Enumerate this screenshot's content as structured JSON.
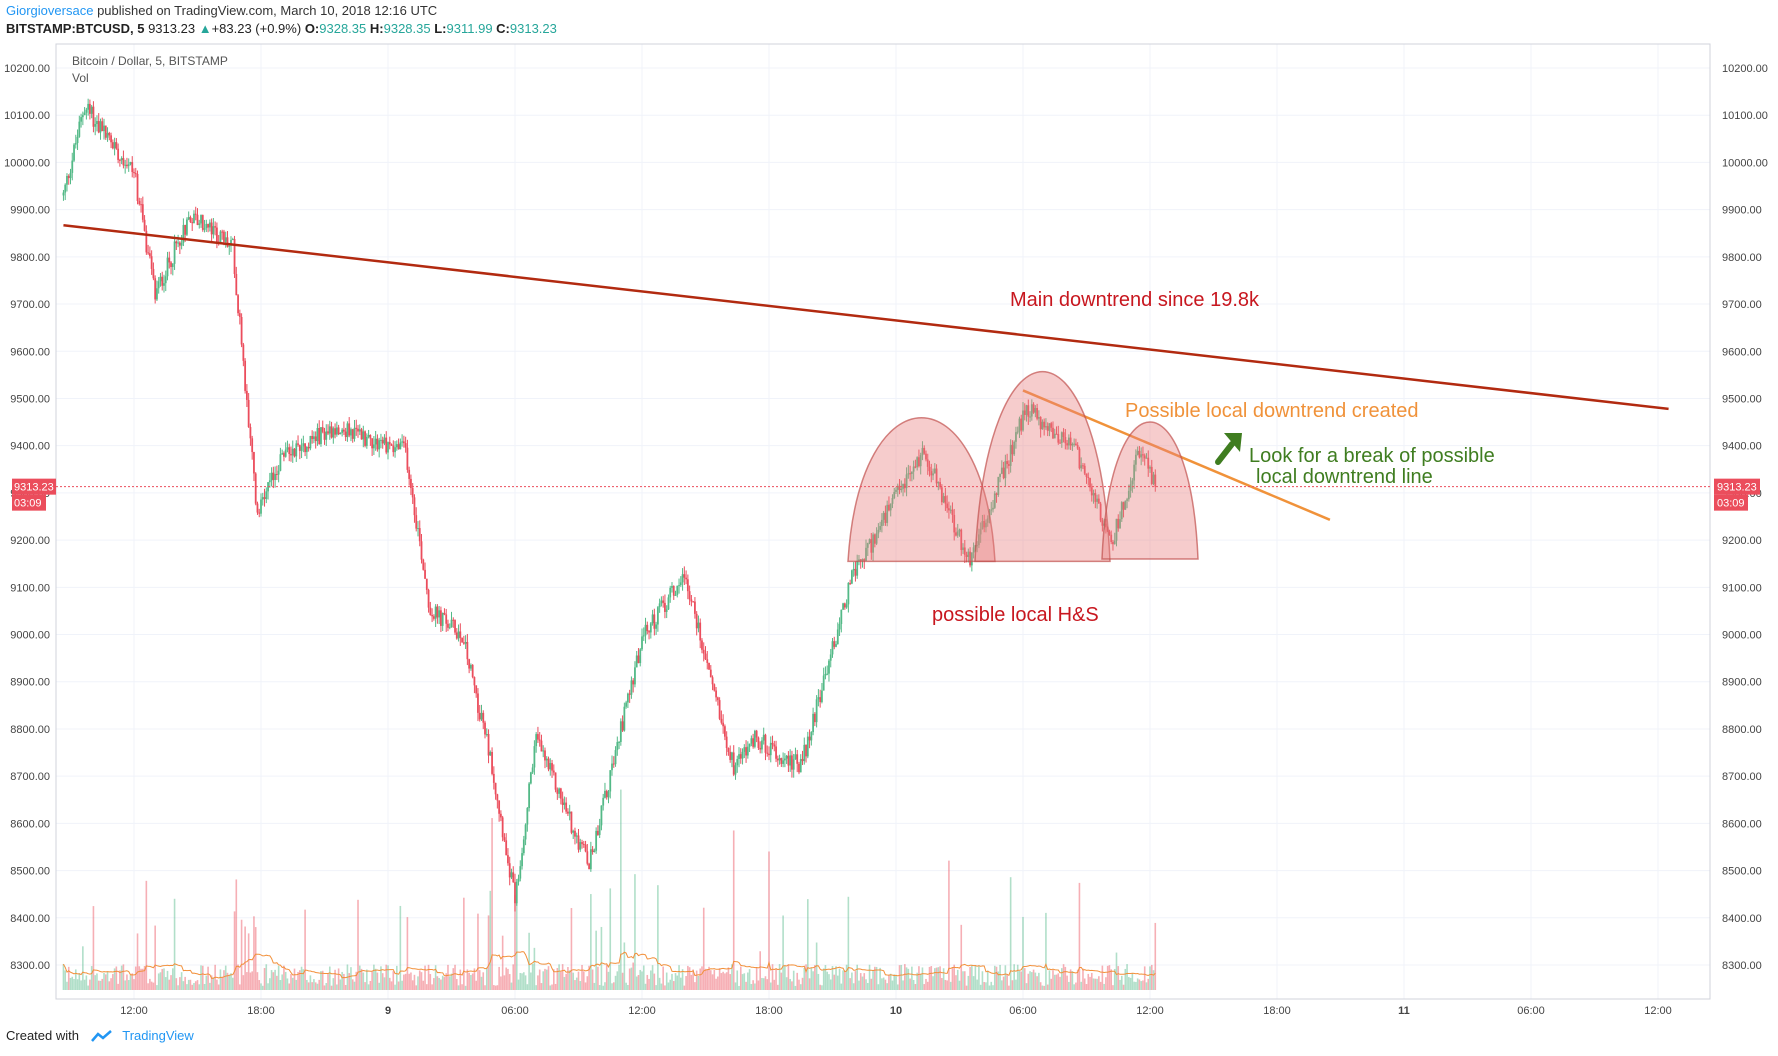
{
  "header": {
    "author": "Giorgioversace",
    "published": "published on TradingView.com, March 10, 2018 12:16 UTC"
  },
  "quote": {
    "symbol": "BITSTAMP:BTCUSD, 5",
    "last": "9313.23",
    "change": "+83.23 (+0.9%)",
    "o_label": "O:",
    "o": "9328.35",
    "h_label": "H:",
    "h": "9328.35",
    "l_label": "L:",
    "l": "9311.99",
    "c_label": "C:",
    "c": "9313.23"
  },
  "legend": {
    "title": "Bitcoin / Dollar, 5, BITSTAMP",
    "vol": "Vol"
  },
  "price_badge": {
    "price": "9313.23",
    "countdown": "03:09"
  },
  "annotations": {
    "main_trend": "Main downtrend since 19.8k",
    "local_trend": "Possible local downtrend created",
    "break_line1": "Look for a break of possible",
    "break_line2": "local downtrend line",
    "hs": "possible local H&S"
  },
  "colors": {
    "up": "#53b987",
    "down": "#eb4d5c",
    "main_trend": "#b22a10",
    "local_trend": "#f0923a",
    "arrow": "#3f7d20",
    "annotation_red": "#c8171f",
    "hs_fill": "#e88080",
    "vol_ma": "#f2903a",
    "grid": "#f0f3fa"
  },
  "footer": {
    "created": "Created with",
    "brand": "TradingView"
  },
  "chart_data": {
    "type": "candlestick",
    "ylim": [
      8270,
      10240
    ],
    "y_ticks": [
      "10200.00",
      "10100.00",
      "10000.00",
      "9900.00",
      "9800.00",
      "9700.00",
      "9600.00",
      "9500.00",
      "9400.00",
      "9300.00",
      "9200.00",
      "9100.00",
      "9000.00",
      "8900.00",
      "8800.00",
      "8700.00",
      "8600.00",
      "8500.00",
      "8400.00",
      "8300.00"
    ],
    "x_ticks": [
      "12:00",
      "18:00",
      "9",
      "06:00",
      "12:00",
      "18:00",
      "10",
      "06:00",
      "12:00",
      "18:00",
      "11",
      "06:00",
      "12:00"
    ],
    "last_price": 9313.23,
    "price_path_keyframes": [
      {
        "t": "Mar 8 ~08:40",
        "price": 9930
      },
      {
        "t": "Mar 8 ~09:40",
        "price": 10120
      },
      {
        "t": "Mar 8 ~12:00",
        "price": 9980
      },
      {
        "t": "Mar 8 ~13:00",
        "price": 9720
      },
      {
        "t": "Mar 8 ~14:40",
        "price": 9890
      },
      {
        "t": "Mar 8 ~16:40",
        "price": 9820
      },
      {
        "t": "Mar 8 ~17:50",
        "price": 9250
      },
      {
        "t": "Mar 8 ~19:00",
        "price": 9380
      },
      {
        "t": "Mar 8 ~21:30",
        "price": 9440
      },
      {
        "t": "Mar 9 ~00:50",
        "price": 9390
      },
      {
        "t": "Mar 9 ~02:00",
        "price": 9050
      },
      {
        "t": "Mar 9 ~03:30",
        "price": 9000
      },
      {
        "t": "Mar 9 ~04:50",
        "price": 8740
      },
      {
        "t": "Mar 9 ~06:00",
        "price": 8440
      },
      {
        "t": "Mar 9 ~07:00",
        "price": 8780
      },
      {
        "t": "Mar 9 ~09:30",
        "price": 8510
      },
      {
        "t": "Mar 9 ~12:00",
        "price": 8990
      },
      {
        "t": "Mar 9 ~14:00",
        "price": 9130
      },
      {
        "t": "Mar 9 ~16:20",
        "price": 8720
      },
      {
        "t": "Mar 9 ~17:20",
        "price": 8780
      },
      {
        "t": "Mar 9 ~19:30",
        "price": 8720
      },
      {
        "t": "Mar 9 ~21:50",
        "price": 9110
      },
      {
        "t": "Mar 10 ~00:00",
        "price": 9290
      },
      {
        "t": "Mar 10 ~01:20",
        "price": 9390
      },
      {
        "t": "Mar 10 ~03:30",
        "price": 9150
      },
      {
        "t": "Mar 10 ~06:10",
        "price": 9480
      },
      {
        "t": "Mar 10 ~08:30",
        "price": 9390
      },
      {
        "t": "Mar 10 ~10:10",
        "price": 9190
      },
      {
        "t": "Mar 10 ~11:30",
        "price": 9390
      },
      {
        "t": "Mar 10 ~12:16",
        "price": 9313
      }
    ],
    "lines": [
      {
        "name": "Main downtrend since 19.8k",
        "from": {
          "t": "Mar 8 ~08:40",
          "price": 9867
        },
        "to": {
          "t": "Mar 11 ~12:30",
          "price": 9478
        }
      },
      {
        "name": "Possible local downtrend created",
        "from": {
          "t": "Mar 10 ~06:00",
          "price": 9517
        },
        "to": {
          "t": "Mar 10 ~20:30",
          "price": 9243
        }
      }
    ],
    "shapes": [
      {
        "label": "possible local H&S",
        "kind": "arcs",
        "peaks": [
          9460,
          9558,
          9451
        ],
        "base": 9155
      }
    ]
  }
}
